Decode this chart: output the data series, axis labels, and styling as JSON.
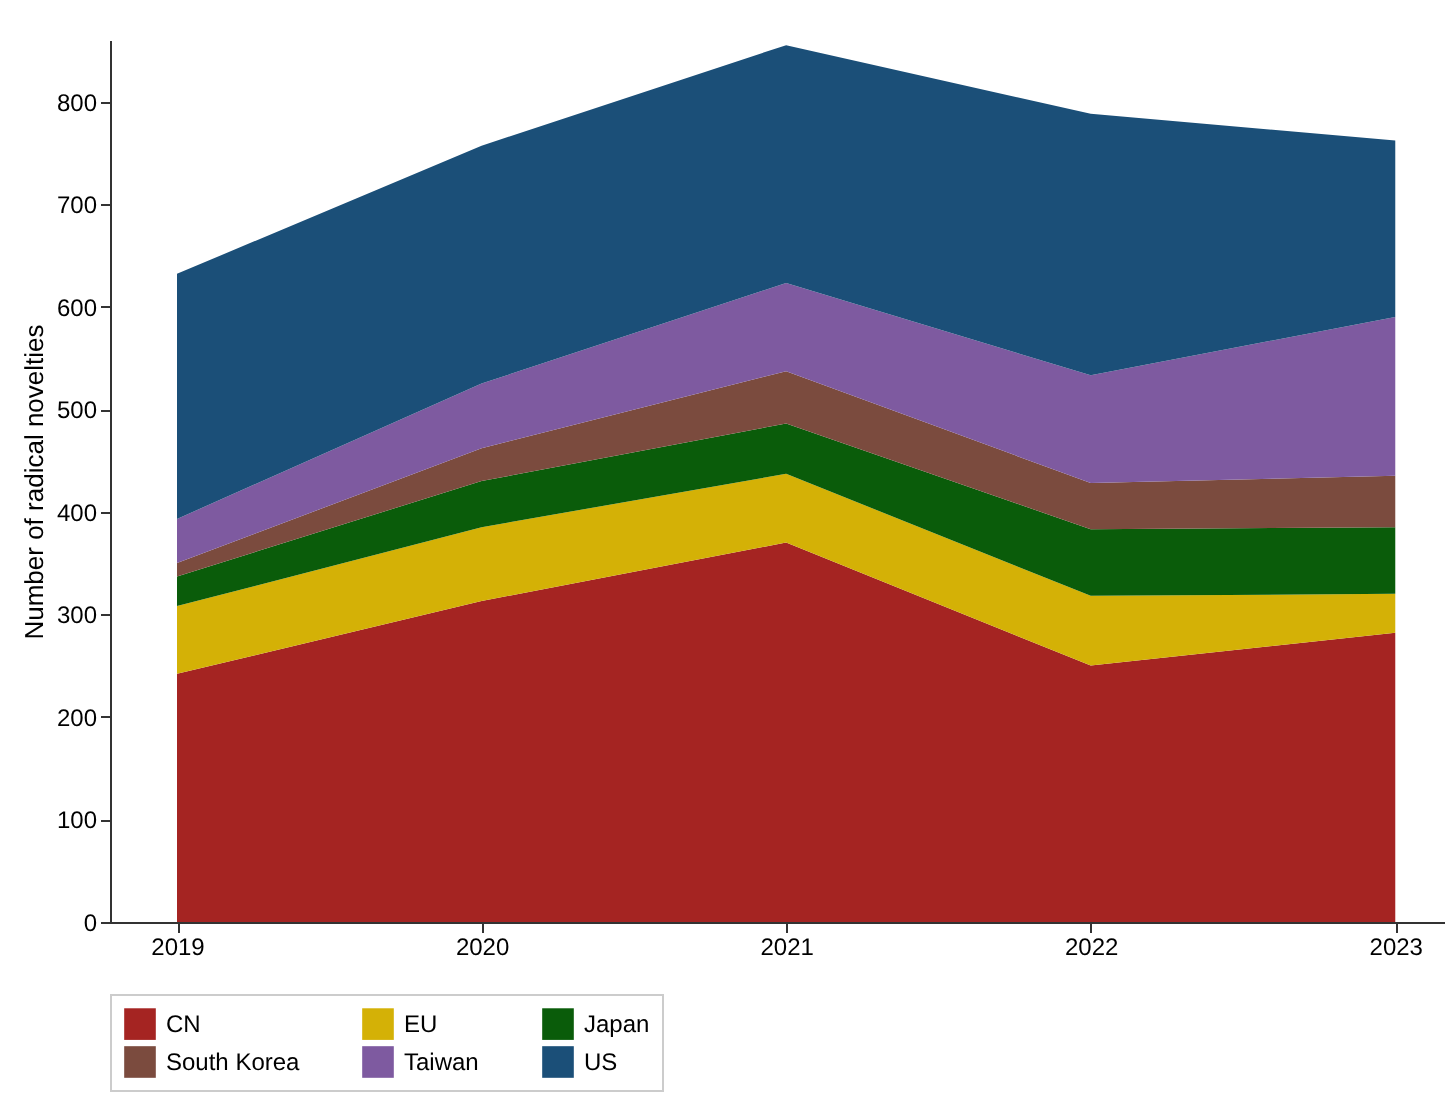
{
  "chart_data": {
    "type": "area",
    "stacked": true,
    "ylabel": "Number of radical novelties",
    "x": [
      2019,
      2020,
      2021,
      2022,
      2023
    ],
    "xlim": [
      2018.78,
      2023.16
    ],
    "xticks": [
      2019,
      2020,
      2021,
      2022,
      2023
    ],
    "ylim": [
      0,
      860
    ],
    "yticks": [
      0,
      100,
      200,
      300,
      400,
      500,
      600,
      700,
      800
    ],
    "series": [
      {
        "name": "CN",
        "color": "#a52422",
        "values": [
          242,
          313,
          370,
          250,
          282
        ]
      },
      {
        "name": "EU",
        "color": "#d4b106",
        "values": [
          66,
          72,
          67,
          68,
          38
        ]
      },
      {
        "name": "Japan",
        "color": "#0a5c0a",
        "values": [
          29,
          45,
          49,
          65,
          65
        ]
      },
      {
        "name": "South Korea",
        "color": "#7b4b3e",
        "values": [
          13,
          32,
          51,
          45,
          50
        ]
      },
      {
        "name": "Taiwan",
        "color": "#7e5aa0",
        "values": [
          43,
          63,
          86,
          105,
          155
        ]
      },
      {
        "name": "US",
        "color": "#1b4f78",
        "values": [
          239,
          232,
          232,
          255,
          172
        ]
      }
    ],
    "grid": false,
    "legend": "bottom"
  }
}
